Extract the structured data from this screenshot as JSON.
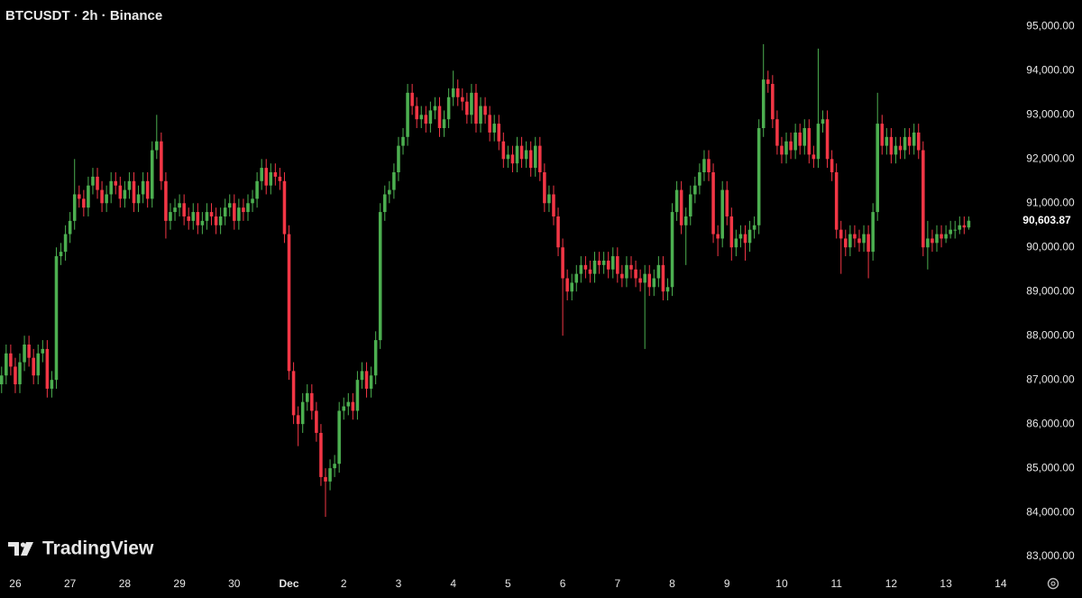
{
  "chart_data": {
    "type": "candlestick",
    "title": "BTCUSDT · 2h · Binance",
    "watermark": "TradingView",
    "up_color": "#4caf50",
    "down_color": "#f23645",
    "grid": false,
    "xlim": [
      -6.7,
      438
    ],
    "ylim": [
      82450,
      95600
    ],
    "xticks": [
      {
        "value": 0,
        "label": "26"
      },
      {
        "value": 24,
        "label": "27"
      },
      {
        "value": 48,
        "label": "28"
      },
      {
        "value": 72,
        "label": "29"
      },
      {
        "value": 96,
        "label": "30"
      },
      {
        "value": 120,
        "label": "Dec"
      },
      {
        "value": 144,
        "label": "2"
      },
      {
        "value": 168,
        "label": "3"
      },
      {
        "value": 192,
        "label": "4"
      },
      {
        "value": 216,
        "label": "5"
      },
      {
        "value": 240,
        "label": "6"
      },
      {
        "value": 264,
        "label": "7"
      },
      {
        "value": 288,
        "label": "8"
      },
      {
        "value": 312,
        "label": "9"
      },
      {
        "value": 336,
        "label": "10"
      },
      {
        "value": 360,
        "label": "11"
      },
      {
        "value": 384,
        "label": "12"
      },
      {
        "value": 408,
        "label": "13"
      },
      {
        "value": 432,
        "label": "14"
      }
    ],
    "yticks": [
      {
        "value": 83000,
        "label": "83,000.00"
      },
      {
        "value": 84000,
        "label": "84,000.00"
      },
      {
        "value": 85000,
        "label": "85,000.00"
      },
      {
        "value": 86000,
        "label": "86,000.00"
      },
      {
        "value": 87000,
        "label": "87,000.00"
      },
      {
        "value": 88000,
        "label": "88,000.00"
      },
      {
        "value": 89000,
        "label": "89,000.00"
      },
      {
        "value": 90000,
        "label": "90,000.00"
      },
      {
        "value": 91000,
        "label": "91,000.00"
      },
      {
        "value": 92000,
        "label": "92,000.00"
      },
      {
        "value": 93000,
        "label": "93,000.00"
      },
      {
        "value": 94000,
        "label": "94,000.00"
      },
      {
        "value": 95000,
        "label": "95,000.00"
      }
    ],
    "last_price": {
      "value": 90603.87,
      "label": "90,603.87"
    },
    "x": [
      -6,
      -4,
      -2,
      0,
      2,
      4,
      6,
      8,
      10,
      12,
      14,
      16,
      18,
      20,
      22,
      24,
      26,
      28,
      30,
      32,
      34,
      36,
      38,
      40,
      42,
      44,
      46,
      48,
      50,
      52,
      54,
      56,
      58,
      60,
      62,
      64,
      66,
      68,
      70,
      72,
      74,
      76,
      78,
      80,
      82,
      84,
      86,
      88,
      90,
      92,
      94,
      96,
      98,
      100,
      102,
      104,
      106,
      108,
      110,
      112,
      114,
      116,
      118,
      120,
      122,
      124,
      126,
      128,
      130,
      132,
      134,
      136,
      138,
      140,
      142,
      144,
      146,
      148,
      150,
      152,
      154,
      156,
      158,
      160,
      162,
      164,
      166,
      168,
      170,
      172,
      174,
      176,
      178,
      180,
      182,
      184,
      186,
      188,
      190,
      192,
      194,
      196,
      198,
      200,
      202,
      204,
      206,
      208,
      210,
      212,
      214,
      216,
      218,
      220,
      222,
      224,
      226,
      228,
      230,
      232,
      234,
      236,
      238,
      240,
      242,
      244,
      246,
      248,
      250,
      252,
      254,
      256,
      258,
      260,
      262,
      264,
      266,
      268,
      270,
      272,
      274,
      276,
      278,
      280,
      282,
      284,
      286,
      288,
      290,
      292,
      294,
      296,
      298,
      300,
      302,
      304,
      306,
      308,
      310,
      312,
      314,
      316,
      318,
      320,
      322,
      324,
      326,
      328,
      330,
      332,
      334,
      336,
      338,
      340,
      342,
      344,
      346,
      348,
      350,
      352,
      354,
      356,
      358,
      360,
      362,
      364,
      366,
      368,
      370,
      372,
      374,
      376,
      378,
      380,
      382,
      384,
      386,
      388,
      390,
      392,
      394,
      396,
      398,
      400,
      402,
      404,
      406,
      408,
      410,
      412,
      414,
      416,
      418
    ],
    "open": [
      86900,
      87100,
      87600,
      87300,
      86900,
      87400,
      87800,
      87500,
      87100,
      87600,
      87700,
      86800,
      87000,
      89800,
      89900,
      90300,
      90600,
      91200,
      91100,
      90900,
      91400,
      91600,
      91300,
      91000,
      91200,
      91500,
      91400,
      91100,
      91300,
      91500,
      91000,
      91200,
      91500,
      91100,
      92200,
      92400,
      91500,
      90600,
      90800,
      90900,
      91000,
      90700,
      90600,
      90800,
      90500,
      90600,
      90800,
      90700,
      90500,
      90700,
      90900,
      91000,
      90600,
      90900,
      90800,
      91000,
      91100,
      91500,
      91800,
      91400,
      91700,
      91600,
      91500,
      90300,
      87200,
      86200,
      86000,
      86500,
      86700,
      86300,
      85800,
      84800,
      84700,
      85000,
      85100,
      86300,
      86400,
      86500,
      86300,
      87000,
      87200,
      86800,
      87100,
      87900,
      90800,
      91200,
      91300,
      91700,
      92300,
      92500,
      93500,
      93200,
      92900,
      93000,
      92800,
      93100,
      93200,
      92700,
      92900,
      93400,
      93600,
      93400,
      93300,
      93000,
      93500,
      92800,
      93200,
      93000,
      92600,
      92800,
      92400,
      92000,
      92100,
      91900,
      92300,
      92000,
      92200,
      91800,
      92300,
      91700,
      91000,
      91200,
      90700,
      90000,
      89300,
      89000,
      89200,
      89400,
      89600,
      89500,
      89400,
      89700,
      89600,
      89700,
      89500,
      89800,
      89400,
      89300,
      89600,
      89500,
      89300,
      89200,
      89400,
      89100,
      89300,
      89600,
      89000,
      89100,
      90800,
      91300,
      90500,
      90700,
      91200,
      91400,
      91700,
      92000,
      91700,
      90300,
      90200,
      91300,
      90700,
      90000,
      90200,
      90300,
      90100,
      90400,
      90500,
      92700,
      93800,
      93700,
      92900,
      92300,
      92100,
      92400,
      92200,
      92600,
      92300,
      92700,
      92100,
      92000,
      92800,
      92900,
      92000,
      91700,
      90400,
      90200,
      90000,
      90300,
      90200,
      90100,
      90300,
      89900,
      90800,
      92800,
      92300,
      92500,
      92100,
      92300,
      92200,
      92500,
      92300,
      92600,
      92200,
      90000,
      90200,
      90100,
      90300,
      90200,
      90300,
      90400,
      90400,
      90500,
      90450
    ],
    "high": [
      87300,
      87800,
      87800,
      87500,
      87600,
      88000,
      88000,
      87700,
      87800,
      87900,
      87900,
      87200,
      90000,
      90100,
      90500,
      90800,
      92000,
      91400,
      91300,
      91600,
      91800,
      91800,
      91500,
      91400,
      91700,
      91700,
      91600,
      91500,
      91700,
      91700,
      91400,
      91700,
      91700,
      92400,
      93000,
      92600,
      91700,
      91000,
      91100,
      91200,
      91200,
      90900,
      91000,
      91000,
      90800,
      91000,
      91000,
      90900,
      90900,
      91100,
      91200,
      91200,
      91100,
      91100,
      91200,
      91300,
      91700,
      92000,
      92000,
      91900,
      91900,
      91800,
      91700,
      90500,
      87400,
      86400,
      86700,
      86900,
      86900,
      86500,
      86000,
      85000,
      85200,
      85300,
      86500,
      86600,
      86700,
      86700,
      87200,
      87400,
      87400,
      87300,
      88100,
      91000,
      91400,
      91500,
      91900,
      92500,
      92700,
      93700,
      93700,
      93400,
      93200,
      93200,
      93300,
      93400,
      93400,
      93100,
      93600,
      94000,
      93800,
      93600,
      93500,
      93700,
      93700,
      93400,
      93400,
      93200,
      93000,
      93000,
      92600,
      92300,
      92300,
      92500,
      92500,
      92400,
      92400,
      92500,
      92500,
      91900,
      91400,
      91400,
      90900,
      90200,
      89500,
      89400,
      89600,
      89800,
      89800,
      89700,
      89900,
      89900,
      89900,
      89900,
      90000,
      90000,
      89600,
      89800,
      89800,
      89700,
      89500,
      89600,
      89600,
      89500,
      89800,
      89800,
      89300,
      91000,
      91500,
      91500,
      90900,
      91400,
      91600,
      91900,
      92200,
      92200,
      91900,
      90500,
      91500,
      91500,
      90900,
      90400,
      90500,
      90500,
      90600,
      90700,
      92900,
      94600,
      94000,
      93900,
      93100,
      92500,
      92600,
      92600,
      92800,
      92800,
      92900,
      92900,
      92300,
      94500,
      93100,
      93100,
      92200,
      91900,
      90600,
      90400,
      90500,
      90500,
      90400,
      90500,
      90500,
      91000,
      93500,
      93000,
      92700,
      92700,
      92500,
      92500,
      92700,
      92700,
      92800,
      92800,
      92400,
      90600,
      90400,
      90500,
      90500,
      90500,
      90600,
      90600,
      90700,
      90700,
      90700
    ],
    "low": [
      86700,
      86900,
      87100,
      86700,
      86700,
      87200,
      87300,
      86900,
      86900,
      87400,
      86600,
      86600,
      86800,
      89600,
      89700,
      90100,
      90400,
      90900,
      90700,
      90700,
      91200,
      91100,
      90800,
      90800,
      91000,
      91200,
      90900,
      90900,
      91100,
      90800,
      90800,
      91000,
      90900,
      90900,
      92000,
      91300,
      90200,
      90400,
      90600,
      90700,
      90500,
      90400,
      90400,
      90300,
      90300,
      90400,
      90500,
      90300,
      90300,
      90500,
      90700,
      90400,
      90400,
      90600,
      90600,
      90800,
      90900,
      91300,
      91200,
      91200,
      91400,
      91300,
      90100,
      87000,
      86000,
      85500,
      85800,
      86300,
      86100,
      85600,
      84600,
      83900,
      84500,
      84800,
      84900,
      86100,
      86200,
      86100,
      86100,
      86800,
      86600,
      86600,
      86900,
      87700,
      90600,
      91000,
      91100,
      91500,
      92100,
      92300,
      93000,
      92700,
      92700,
      92600,
      92600,
      92900,
      92500,
      92500,
      92700,
      93200,
      93200,
      93100,
      92800,
      92800,
      92600,
      92600,
      92800,
      92400,
      92400,
      92200,
      91800,
      91800,
      91700,
      91700,
      91800,
      91800,
      91600,
      91600,
      91500,
      90800,
      90800,
      90500,
      89800,
      88000,
      88800,
      88800,
      89000,
      89200,
      89300,
      89200,
      89200,
      89400,
      89400,
      89300,
      89300,
      89200,
      89100,
      89100,
      89300,
      89100,
      89000,
      87700,
      88900,
      88900,
      89100,
      88800,
      88800,
      88900,
      90600,
      90300,
      89600,
      90500,
      91000,
      91200,
      91500,
      91500,
      90100,
      89800,
      90000,
      90500,
      89700,
      89800,
      90000,
      89700,
      89900,
      90200,
      90300,
      92500,
      93500,
      92700,
      92100,
      91900,
      91900,
      92000,
      92000,
      92100,
      92100,
      91900,
      91800,
      91800,
      92600,
      91800,
      91500,
      90200,
      89400,
      89800,
      89800,
      90000,
      89900,
      89900,
      89300,
      89700,
      90600,
      92100,
      92100,
      91900,
      91900,
      92000,
      92000,
      92100,
      92100,
      92000,
      89800,
      89500,
      89900,
      89900,
      90000,
      90100,
      90200,
      90200,
      90300,
      90300,
      90400
    ],
    "close": [
      87100,
      87600,
      87300,
      86900,
      87400,
      87800,
      87500,
      87100,
      87600,
      87700,
      86800,
      87000,
      89800,
      89900,
      90300,
      90600,
      91200,
      91100,
      90900,
      91400,
      91600,
      91300,
      91000,
      91200,
      91500,
      91400,
      91100,
      91300,
      91500,
      91000,
      91200,
      91500,
      91100,
      92200,
      92400,
      91500,
      90600,
      90800,
      90900,
      91000,
      90700,
      90600,
      90800,
      90500,
      90600,
      90800,
      90700,
      90500,
      90700,
      90900,
      91000,
      90600,
      90900,
      90800,
      91000,
      91100,
      91500,
      91800,
      91400,
      91700,
      91600,
      91500,
      90300,
      87200,
      86200,
      86000,
      86500,
      86700,
      86300,
      85800,
      84800,
      84700,
      85000,
      85100,
      86300,
      86400,
      86500,
      86300,
      87000,
      87200,
      86800,
      87100,
      87900,
      90800,
      91200,
      91300,
      91700,
      92300,
      92500,
      93500,
      93200,
      92900,
      93000,
      92800,
      93100,
      93200,
      92700,
      92900,
      93400,
      93600,
      93400,
      93300,
      93000,
      93500,
      92800,
      93200,
      93000,
      92600,
      92800,
      92400,
      92000,
      92100,
      91900,
      92300,
      92000,
      92200,
      91800,
      92300,
      91700,
      91000,
      91200,
      90700,
      90000,
      89300,
      89000,
      89200,
      89400,
      89600,
      89500,
      89400,
      89700,
      89600,
      89700,
      89500,
      89800,
      89400,
      89300,
      89600,
      89500,
      89300,
      89200,
      89400,
      89100,
      89300,
      89600,
      89000,
      89100,
      90800,
      91300,
      90500,
      90700,
      91200,
      91400,
      91700,
      92000,
      91700,
      90300,
      90200,
      91300,
      90700,
      90000,
      90200,
      90300,
      90100,
      90400,
      90500,
      92700,
      93800,
      93700,
      92900,
      92300,
      92100,
      92400,
      92200,
      92600,
      92300,
      92700,
      92100,
      92000,
      92800,
      92900,
      92000,
      91700,
      90400,
      90200,
      90000,
      90300,
      90200,
      90100,
      90300,
      89900,
      90800,
      92800,
      92300,
      92500,
      92100,
      92300,
      92200,
      92500,
      92300,
      92600,
      92200,
      90000,
      90200,
      90100,
      90300,
      90200,
      90300,
      90400,
      90400,
      90500,
      90450,
      90603.87
    ]
  }
}
